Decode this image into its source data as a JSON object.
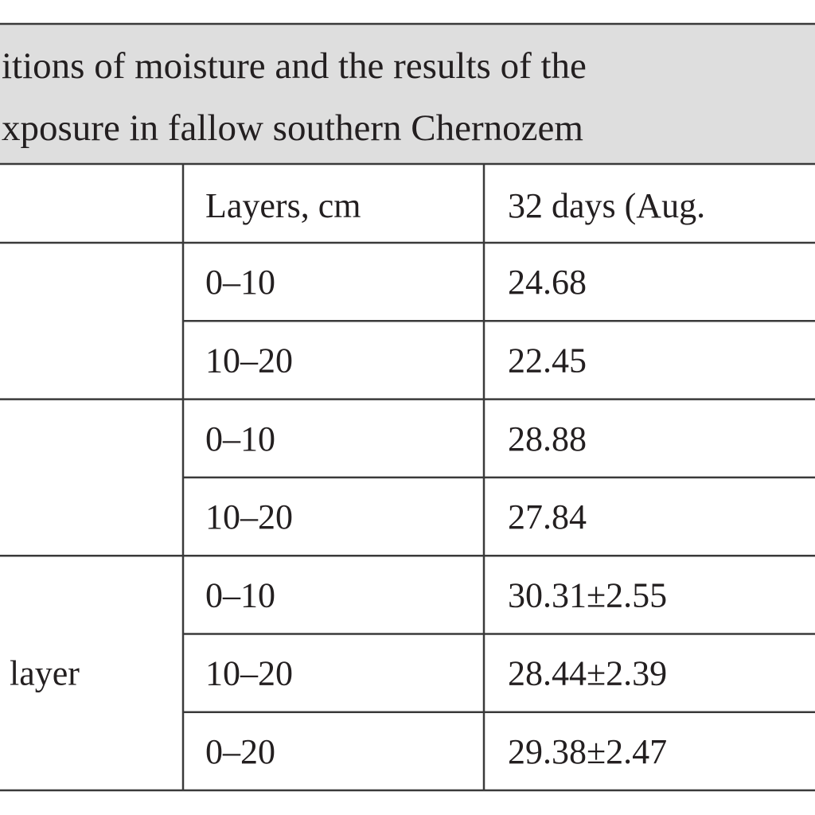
{
  "header": {
    "title_lines": [
      "itions of moisture and the results of the",
      "xposure in fallow southern Chernozem"
    ]
  },
  "table": {
    "columns": [
      "Layers, cm",
      "32 days (Aug."
    ],
    "groups": [
      {
        "rows": [
          {
            "layer": "0–10",
            "value": "24.68"
          },
          {
            "layer": "10–20",
            "value": "22.45"
          }
        ]
      },
      {
        "rows": [
          {
            "layer": "0–10",
            "value": "28.88"
          },
          {
            "layer": "10–20",
            "value": "27.84"
          }
        ]
      },
      {
        "label": "layer",
        "rows": [
          {
            "layer": "0–10",
            "value": "30.31±2.55"
          },
          {
            "layer": "10–20",
            "value": "28.44±2.39"
          },
          {
            "layer": "0–20",
            "value": "29.38±2.47"
          }
        ]
      }
    ]
  }
}
